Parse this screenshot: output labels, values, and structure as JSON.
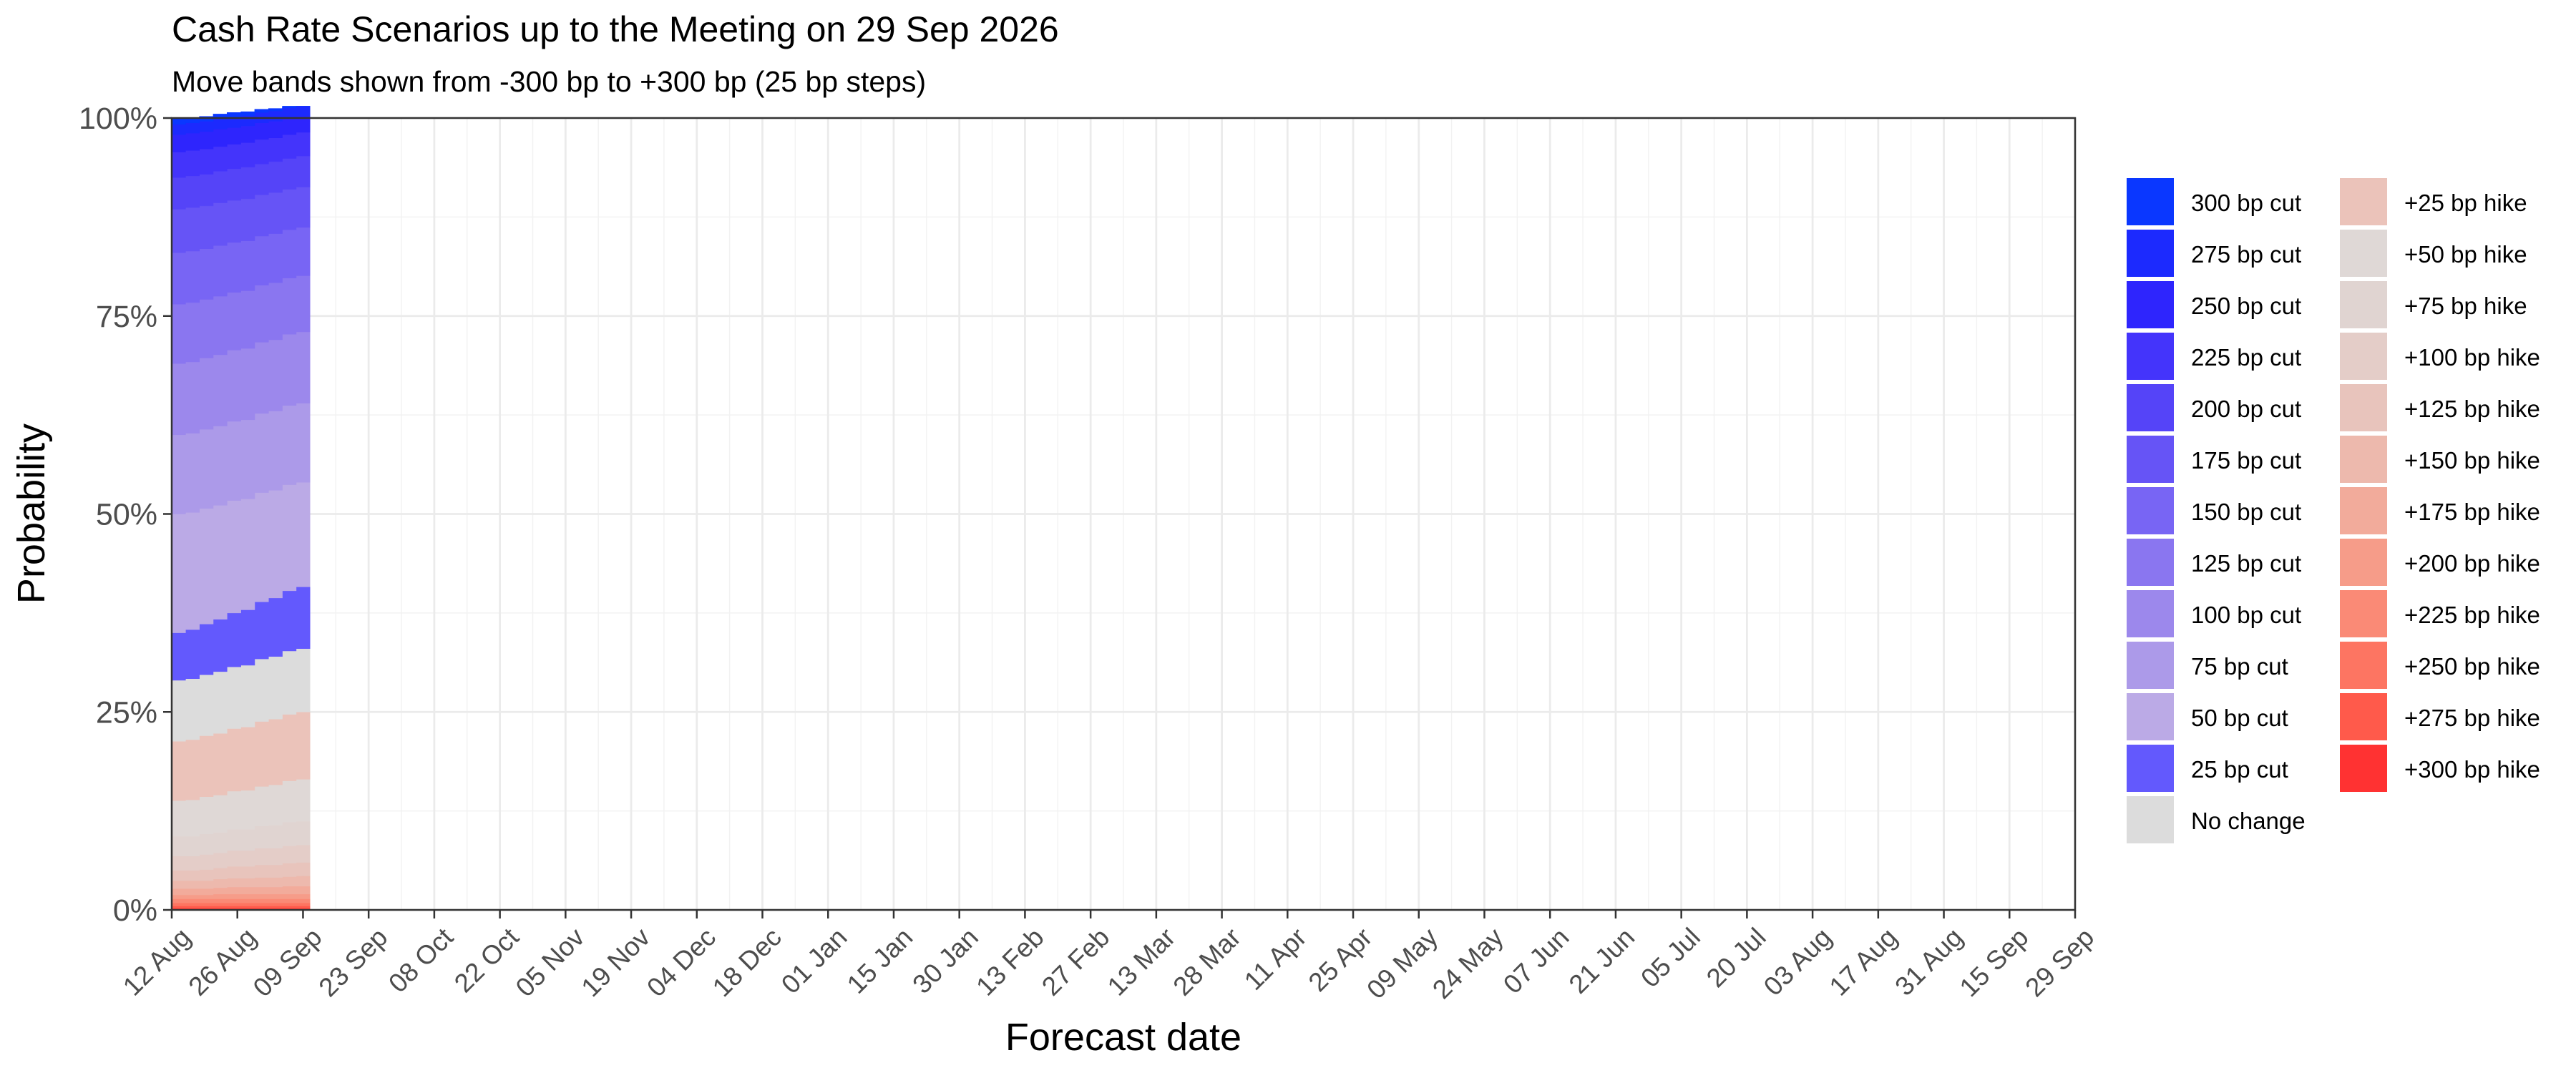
{
  "chart_data": {
    "type": "area",
    "stacked": true,
    "title": "Cash Rate Scenarios up to the Meeting on 29 Sep 2026",
    "subtitle": "Move bands shown from -300 bp to +300 bp (25 bp steps)",
    "xlabel": "Forecast date",
    "ylabel": "Probability",
    "x_ticks": [
      "12 Aug",
      "26 Aug",
      "09 Sep",
      "23 Sep",
      "08 Oct",
      "22 Oct",
      "05 Nov",
      "19 Nov",
      "04 Dec",
      "18 Dec",
      "01 Jan",
      "15 Jan",
      "30 Jan",
      "13 Feb",
      "27 Feb",
      "13 Mar",
      "28 Mar",
      "11 Apr",
      "25 Apr",
      "09 May",
      "24 May",
      "07 Jun",
      "21 Jun",
      "05 Jul",
      "20 Jul",
      "03 Aug",
      "17 Aug",
      "31 Aug",
      "15 Sep",
      "29 Sep"
    ],
    "x_range": [
      "2025-08-12",
      "2026-09-29"
    ],
    "y_ticks": [
      "0%",
      "25%",
      "50%",
      "75%",
      "100%"
    ],
    "ylim": [
      0,
      1
    ],
    "grid": true,
    "legend_position": "right",
    "x": [
      "2025-08-12",
      "2025-08-15",
      "2025-08-18",
      "2025-08-21",
      "2025-08-24",
      "2025-08-27",
      "2025-08-30",
      "2025-09-02",
      "2025-09-05",
      "2025-09-08"
    ],
    "series": [
      {
        "name": "+300 bp hike",
        "color": "#ff3232",
        "values": [
          0.002,
          0.002,
          0.002,
          0.002,
          0.002,
          0.002,
          0.002,
          0.002,
          0.002,
          0.002
        ]
      },
      {
        "name": "+275 bp hike",
        "color": "#ff5a4b",
        "values": [
          0.003,
          0.003,
          0.003,
          0.003,
          0.003,
          0.003,
          0.003,
          0.003,
          0.003,
          0.003
        ]
      },
      {
        "name": "+250 bp hike",
        "color": "#fd7562",
        "values": [
          0.004,
          0.004,
          0.004,
          0.004,
          0.004,
          0.004,
          0.004,
          0.004,
          0.004,
          0.004
        ]
      },
      {
        "name": "+225 bp hike",
        "color": "#fa8a76",
        "values": [
          0.005,
          0.005,
          0.005,
          0.005,
          0.005,
          0.005,
          0.005,
          0.005,
          0.005,
          0.005
        ]
      },
      {
        "name": "+200 bp hike",
        "color": "#f69c89",
        "values": [
          0.005,
          0.005,
          0.005,
          0.006,
          0.006,
          0.006,
          0.006,
          0.006,
          0.006,
          0.006
        ]
      },
      {
        "name": "+175 bp hike",
        "color": "#f2ab9b",
        "values": [
          0.008,
          0.008,
          0.008,
          0.008,
          0.009,
          0.009,
          0.009,
          0.009,
          0.01,
          0.01
        ]
      },
      {
        "name": "+150 bp hike",
        "color": "#edb9ad",
        "values": [
          0.01,
          0.01,
          0.01,
          0.011,
          0.011,
          0.011,
          0.012,
          0.012,
          0.012,
          0.013
        ]
      },
      {
        "name": "+125 bp hike",
        "color": "#e8c4bc",
        "values": [
          0.013,
          0.013,
          0.014,
          0.014,
          0.015,
          0.015,
          0.016,
          0.016,
          0.017,
          0.017
        ]
      },
      {
        "name": "+100 bp hike",
        "color": "#e4cdc8",
        "values": [
          0.018,
          0.018,
          0.019,
          0.019,
          0.02,
          0.02,
          0.021,
          0.021,
          0.022,
          0.022
        ]
      },
      {
        "name": "+75 bp hike",
        "color": "#e0d4d1",
        "values": [
          0.025,
          0.025,
          0.026,
          0.026,
          0.027,
          0.027,
          0.028,
          0.029,
          0.03,
          0.03
        ]
      },
      {
        "name": "+50 bp hike",
        "color": "#dfd8d6",
        "values": [
          0.045,
          0.046,
          0.047,
          0.047,
          0.048,
          0.049,
          0.05,
          0.051,
          0.052,
          0.053
        ]
      },
      {
        "name": "+25 bp hike",
        "color": "#ebc3ba",
        "values": [
          0.075,
          0.076,
          0.077,
          0.078,
          0.079,
          0.08,
          0.082,
          0.083,
          0.084,
          0.085
        ]
      },
      {
        "name": "No change",
        "color": "#dcdcdc",
        "values": [
          0.077,
          0.077,
          0.077,
          0.078,
          0.078,
          0.078,
          0.079,
          0.079,
          0.08,
          0.08
        ]
      },
      {
        "name": "25 bp cut",
        "color": "#6359fd",
        "values": [
          0.06,
          0.062,
          0.064,
          0.066,
          0.068,
          0.07,
          0.072,
          0.074,
          0.076,
          0.078
        ]
      },
      {
        "name": "50 bp cut",
        "color": "#bbaae6",
        "values": [
          0.15,
          0.148,
          0.146,
          0.144,
          0.142,
          0.14,
          0.138,
          0.136,
          0.134,
          0.132
        ]
      },
      {
        "name": "75 bp cut",
        "color": "#ac9ae9",
        "values": [
          0.1,
          0.1,
          0.1,
          0.1,
          0.1,
          0.1,
          0.1,
          0.1,
          0.1,
          0.1
        ]
      },
      {
        "name": "100 bp cut",
        "color": "#9c88ec",
        "values": [
          0.09,
          0.09,
          0.09,
          0.09,
          0.09,
          0.09,
          0.09,
          0.09,
          0.09,
          0.09
        ]
      },
      {
        "name": "125 bp cut",
        "color": "#8a76f0",
        "values": [
          0.075,
          0.075,
          0.074,
          0.074,
          0.073,
          0.073,
          0.072,
          0.072,
          0.071,
          0.071
        ]
      },
      {
        "name": "150 bp cut",
        "color": "#7865f4",
        "values": [
          0.065,
          0.065,
          0.064,
          0.064,
          0.063,
          0.063,
          0.062,
          0.062,
          0.061,
          0.061
        ]
      },
      {
        "name": "175 bp cut",
        "color": "#6654f6",
        "values": [
          0.055,
          0.055,
          0.054,
          0.054,
          0.053,
          0.053,
          0.052,
          0.052,
          0.051,
          0.051
        ]
      },
      {
        "name": "200 bp cut",
        "color": "#5544f8",
        "values": [
          0.04,
          0.04,
          0.04,
          0.04,
          0.04,
          0.04,
          0.039,
          0.039,
          0.039,
          0.039
        ]
      },
      {
        "name": "225 bp cut",
        "color": "#4434fb",
        "values": [
          0.032,
          0.032,
          0.032,
          0.031,
          0.031,
          0.031,
          0.031,
          0.03,
          0.03,
          0.03
        ]
      },
      {
        "name": "250 bp cut",
        "color": "#2e25fd",
        "values": [
          0.022,
          0.022,
          0.022,
          0.022,
          0.021,
          0.021,
          0.021,
          0.021,
          0.021,
          0.02
        ]
      },
      {
        "name": "275 bp cut",
        "color": "#1c2afe",
        "values": [
          0.013,
          0.013,
          0.013,
          0.013,
          0.013,
          0.013,
          0.013,
          0.013,
          0.013,
          0.013
        ]
      },
      {
        "name": "300 bp cut",
        "color": "#0a37ff",
        "values": [
          0.008,
          0.006,
          0.006,
          0.006,
          0.006,
          0.005,
          0.004,
          0.003,
          0.002,
          0.0
        ]
      }
    ],
    "legend_columns": [
      [
        "300 bp cut",
        "275 bp cut",
        "250 bp cut",
        "225 bp cut",
        "200 bp cut",
        "175 bp cut",
        "150 bp cut",
        "125 bp cut",
        "100 bp cut",
        "75 bp cut",
        "50 bp cut",
        "25 bp cut",
        "No change"
      ],
      [
        "+25 bp hike",
        "+50 bp hike",
        "+75 bp hike",
        "+100 bp hike",
        "+125 bp hike",
        "+150 bp hike",
        "+175 bp hike",
        "+200 bp hike",
        "+225 bp hike",
        "+250 bp hike",
        "+275 bp hike",
        "+300 bp hike"
      ]
    ]
  }
}
